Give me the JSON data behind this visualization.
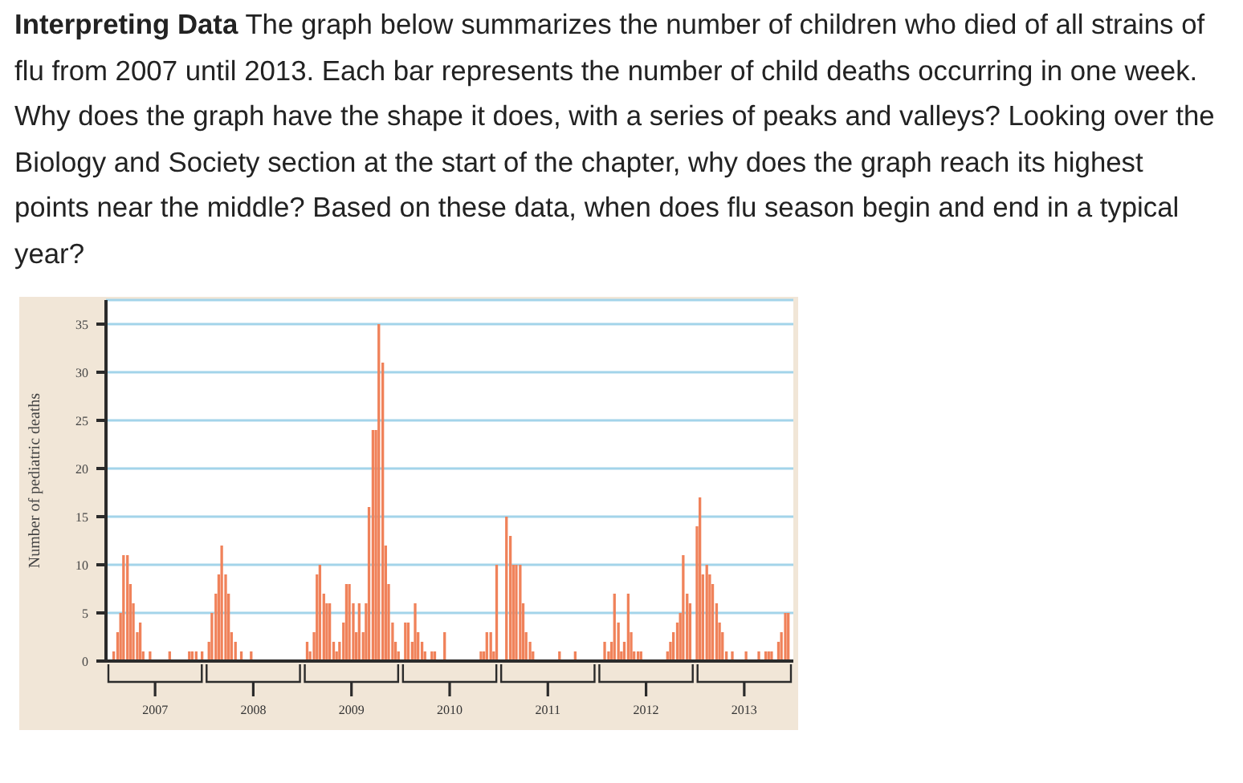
{
  "chart_data": {
    "type": "bar",
    "title": "Interpreting Data",
    "subtitle": "The graph below summarizes the number of children who died of all strains of flu from 2007 until 2013. Each bar represents the number of child deaths occurring in one week. Why does the graph have the shape it does, with a series of peaks and valleys? Looking over the Biology and Society section at the start of the chapter, why does the graph reach its highest points near the middle? Based on these data, when does flu season begin and end in a typical year?",
    "ylabel": "Number of pediatric deaths",
    "x": [
      2006.58,
      2006.62,
      2006.65,
      2006.68,
      2006.72,
      2006.75,
      2006.78,
      2006.82,
      2006.85,
      2006.88,
      2006.95,
      2007.15,
      2007.35,
      2007.38,
      2007.42,
      2007.48,
      2007.55,
      2007.58,
      2007.62,
      2007.65,
      2007.68,
      2007.72,
      2007.75,
      2007.78,
      2007.82,
      2007.88,
      2007.98,
      2008.55,
      2008.58,
      2008.62,
      2008.65,
      2008.68,
      2008.72,
      2008.75,
      2008.78,
      2008.82,
      2008.85,
      2008.88,
      2008.92,
      2008.95,
      2008.98,
      2009.02,
      2009.05,
      2009.08,
      2009.12,
      2009.15,
      2009.18,
      2009.22,
      2009.25,
      2009.28,
      2009.32,
      2009.35,
      2009.38,
      2009.42,
      2009.45,
      2009.48,
      2009.55,
      2009.58,
      2009.62,
      2009.65,
      2009.68,
      2009.72,
      2009.75,
      2009.82,
      2009.85,
      2009.95,
      2010.32,
      2010.35,
      2010.38,
      2010.42,
      2010.45,
      2010.48,
      2010.58,
      2010.62,
      2010.65,
      2010.68,
      2010.72,
      2010.75,
      2010.78,
      2010.82,
      2010.85,
      2011.12,
      2011.28,
      2011.58,
      2011.62,
      2011.65,
      2011.68,
      2011.72,
      2011.75,
      2011.78,
      2011.82,
      2011.85,
      2011.88,
      2011.92,
      2011.95,
      2012.22,
      2012.25,
      2012.28,
      2012.32,
      2012.35,
      2012.38,
      2012.42,
      2012.45,
      2012.52,
      2012.55,
      2012.58,
      2012.62,
      2012.65,
      2012.68,
      2012.72,
      2012.75,
      2012.78,
      2012.82,
      2012.88,
      2013.02,
      2013.15,
      2013.22,
      2013.25,
      2013.28,
      2013.35,
      2013.38,
      2013.42,
      2013.45
    ],
    "values": [
      1,
      3,
      5,
      11,
      11,
      8,
      6,
      3,
      4,
      1,
      1,
      1,
      1,
      1,
      1,
      1,
      2,
      5,
      7,
      9,
      12,
      9,
      7,
      3,
      2,
      1,
      1,
      2,
      1,
      3,
      9,
      10,
      7,
      6,
      6,
      2,
      1,
      2,
      4,
      8,
      8,
      6,
      3,
      6,
      3,
      6,
      16,
      24,
      24,
      35,
      31,
      12,
      8,
      4,
      2,
      1,
      4,
      4,
      2,
      6,
      3,
      2,
      1,
      1,
      1,
      3,
      1,
      1,
      3,
      3,
      1,
      10,
      15,
      13,
      10,
      10,
      10,
      6,
      3,
      2,
      1,
      1,
      1,
      2,
      1,
      2,
      7,
      4,
      1,
      2,
      7,
      3,
      1,
      1,
      1,
      1,
      2,
      3,
      4,
      5,
      11,
      7,
      6,
      14,
      17,
      9,
      10,
      9,
      8,
      6,
      4,
      3,
      1,
      1,
      1,
      1,
      1,
      1,
      1,
      2,
      3,
      5,
      5
    ],
    "color": "#f0825a",
    "xlim": [
      2006.5,
      2013.5
    ],
    "xticks": [
      2007,
      2008,
      2009,
      2010,
      2011,
      2012,
      2013
    ],
    "ylim": [
      0,
      37.5
    ],
    "yticks": [
      0,
      5,
      10,
      15,
      20,
      25,
      30,
      35
    ],
    "grid": "y"
  }
}
